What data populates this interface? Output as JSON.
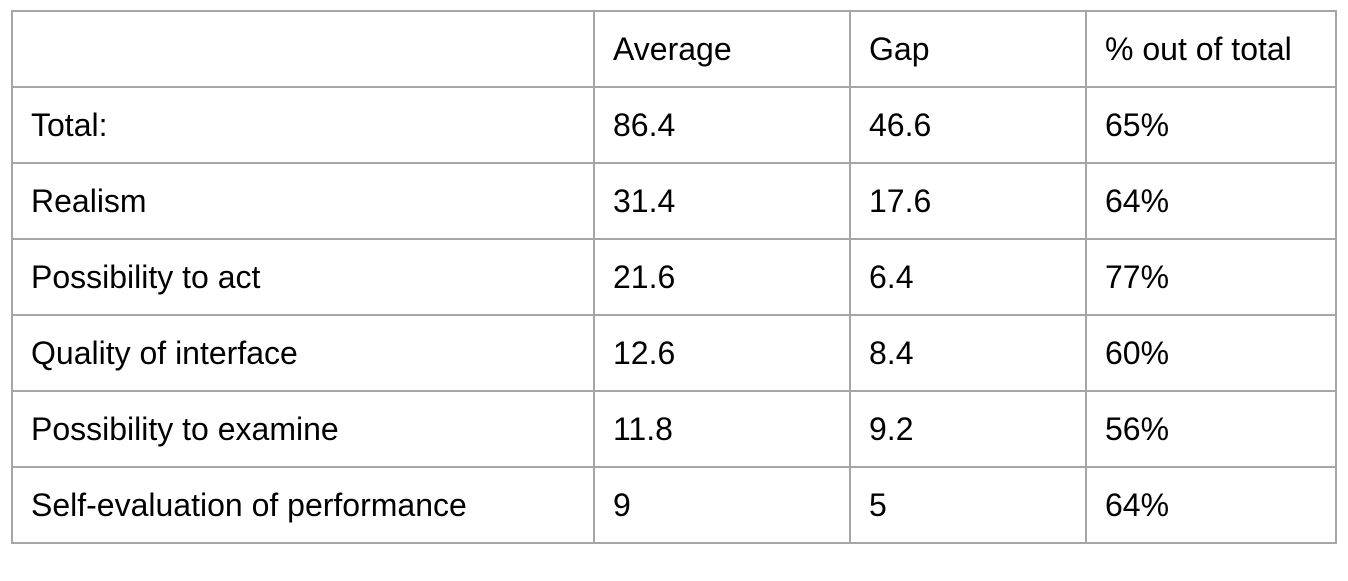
{
  "table": {
    "header": [
      "",
      "Average",
      "Gap",
      "% out of total"
    ],
    "rows": [
      [
        "Total:",
        "86.4",
        "46.6",
        "65%"
      ],
      [
        "Realism",
        "31.4",
        "17.6",
        "64%"
      ],
      [
        "Possibility to act",
        "21.6",
        "6.4",
        "77%"
      ],
      [
        "Quality of interface",
        "12.6",
        "8.4",
        "60%"
      ],
      [
        "Possibility to examine",
        "11.8",
        "9.2",
        "56%"
      ],
      [
        "Self-evaluation of performance",
        "9",
        "5",
        "64%"
      ]
    ]
  },
  "colors": {
    "border": "#a6a6a6",
    "text": "#000000",
    "background": "#ffffff"
  }
}
